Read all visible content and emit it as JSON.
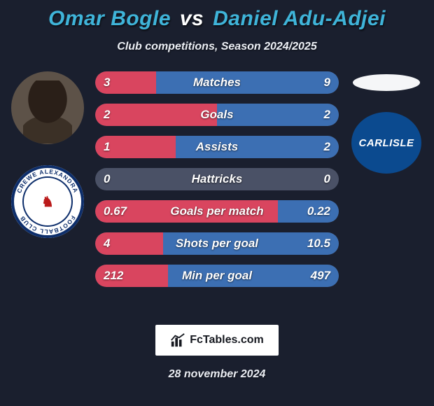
{
  "background_color": "#1a1f2e",
  "title": {
    "player1": "Omar Bogle",
    "vs": "vs",
    "player2": "Daniel Adu-Adjei",
    "player1_color": "#3fb4d9",
    "vs_color": "#ffffff",
    "player2_color": "#3fb4d9",
    "fontsize": 30
  },
  "subtitle": {
    "text": "Club competitions, Season 2024/2025",
    "color": "#eceff5",
    "fontsize": 16
  },
  "player1_photo": {
    "bg": "#5d5248"
  },
  "player2_photo": {
    "bg": "#f5f6f8"
  },
  "club1": {
    "name": "CREWE ALEXANDRA",
    "name_bottom": "FOOTBALL CLUB",
    "center_glyph": "♞",
    "bg": "#ffffff",
    "ring_color": "#0d2e6b",
    "accent": "#ba1a1a"
  },
  "club2": {
    "name": "CARLISLE",
    "bg": "#0b4a8f",
    "text_color": "#ffffff"
  },
  "bars": {
    "left_color": "#d9455f",
    "right_color": "#3c6fb3",
    "neutral_color": "#4a5166",
    "label_color": "#ffffff",
    "value_color": "#ffffff",
    "height": 32,
    "radius": 16,
    "gap": 14,
    "fontsize": 17,
    "rows": [
      {
        "label": "Matches",
        "left": "3",
        "right": "9",
        "left_pct": 25,
        "right_pct": 75
      },
      {
        "label": "Goals",
        "left": "2",
        "right": "2",
        "left_pct": 50,
        "right_pct": 50
      },
      {
        "label": "Assists",
        "left": "1",
        "right": "2",
        "left_pct": 33,
        "right_pct": 67
      },
      {
        "label": "Hattricks",
        "left": "0",
        "right": "0",
        "left_pct": 0,
        "right_pct": 0
      },
      {
        "label": "Goals per match",
        "left": "0.67",
        "right": "0.22",
        "left_pct": 75,
        "right_pct": 25
      },
      {
        "label": "Shots per goal",
        "left": "4",
        "right": "10.5",
        "left_pct": 28,
        "right_pct": 72
      },
      {
        "label": "Min per goal",
        "left": "212",
        "right": "497",
        "left_pct": 30,
        "right_pct": 70
      }
    ]
  },
  "footer": {
    "logo_text": "FcTables.com",
    "logo_bg": "#ffffff",
    "logo_color": "#15181f",
    "date": "28 november 2024",
    "date_color": "#e9ecf2"
  }
}
